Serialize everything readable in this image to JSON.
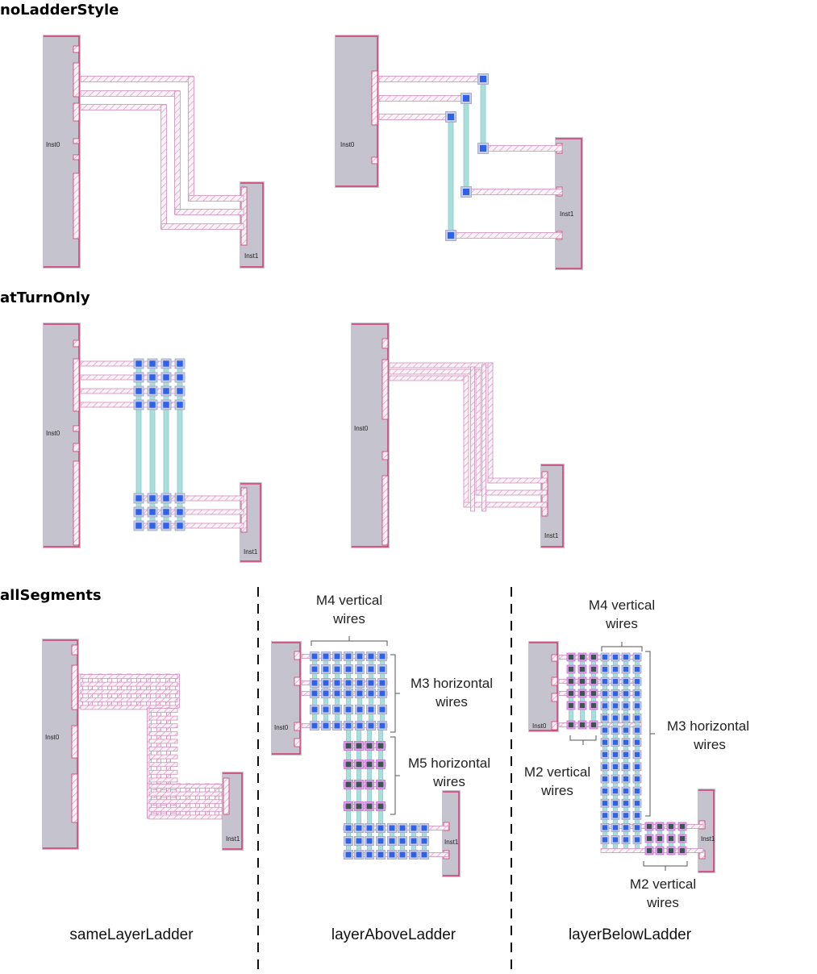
{
  "sections": {
    "no_ladder": "noLadderStyle",
    "at_turn": "atTurnOnly",
    "all_segments": "allSegments"
  },
  "instances": {
    "inst0": "Inst0",
    "inst1": "Inst1"
  },
  "captions": {
    "same": "sameLayerLadder",
    "above": "layerAboveLadder",
    "below": "layerBelowLadder"
  },
  "annotations": {
    "above_m4": [
      "M4 vertical",
      "wires"
    ],
    "above_m3": [
      "M3 horizontal",
      "wires"
    ],
    "above_m5": [
      "M5 horizontal",
      "wires"
    ],
    "below_m4": [
      "M4 vertical",
      "wires"
    ],
    "below_m3": [
      "M3 horizontal",
      "wires"
    ],
    "below_m2a": [
      "M2 vertical",
      "wires"
    ],
    "below_m2b": [
      "M2 vertical",
      "wires"
    ]
  },
  "colors": {
    "instance_fill": "#c5c3cd",
    "instance_border": "#d23a6e",
    "wire_hatch": "#d090b8",
    "via_blue": "#2f62e6",
    "wire_cyan": "#a9dedd",
    "via_dark": "#3b5552",
    "via_pink": "#e4a4ec"
  }
}
